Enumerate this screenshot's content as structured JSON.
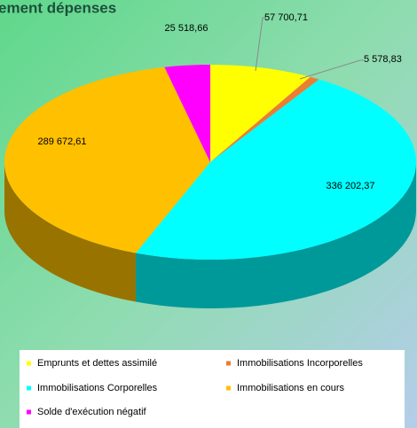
{
  "chart_data": {
    "type": "pie",
    "title": "ement dépenses",
    "categories": [
      "Emprunts et dettes assimilé",
      "Immobilisations Incorporelles",
      "Immobilisations Corporelles",
      "Immobilisations en cours",
      "Solde d'exécution négatif"
    ],
    "values": [
      57700.71,
      5578.83,
      336202.37,
      289672.61,
      25518.66
    ],
    "value_labels": [
      "57 700,71",
      "5 578,83",
      "336 202,37",
      "289 672,61",
      "25 518,66"
    ],
    "colors": [
      "#ffff00",
      "#ed7d31",
      "#00ffff",
      "#ffc000",
      "#ff00ff"
    ],
    "legend": "bottom"
  }
}
